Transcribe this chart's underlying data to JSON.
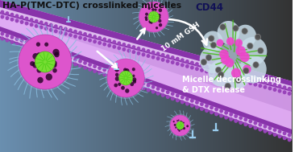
{
  "title": "HA-P(TMC-DTC) crosslinked micelles",
  "cd44_label": "CD44",
  "gsh_label": "10 mM GSH",
  "release_label": "Micelle decrosslinking\n& DTX release",
  "bg_left_top": "#6a8fb0",
  "bg_left_bot": "#4a6888",
  "bg_right": "#3a3a3a",
  "vessel_fill": "#d090e8",
  "vessel_pink_light": "#e8b8f0",
  "vessel_membrane_outer": "#8844bb",
  "vessel_membrane_inner": "#ccaadd",
  "micelle_corona": "#88bbee",
  "micelle_shell": "#dd66cc",
  "micelle_core": "#88dd44",
  "micelle_crosslink": "#331133",
  "exploded_blob": "#d8eaf5",
  "exploded_green": "#55bb22",
  "exploded_magenta": "#ee55cc",
  "exploded_dot": "#555555",
  "receptor_color": "#99ccee",
  "arrow_white": "#ffffff",
  "title_color": "#000000",
  "cd44_color": "#111166",
  "text_white": "#ffffff"
}
